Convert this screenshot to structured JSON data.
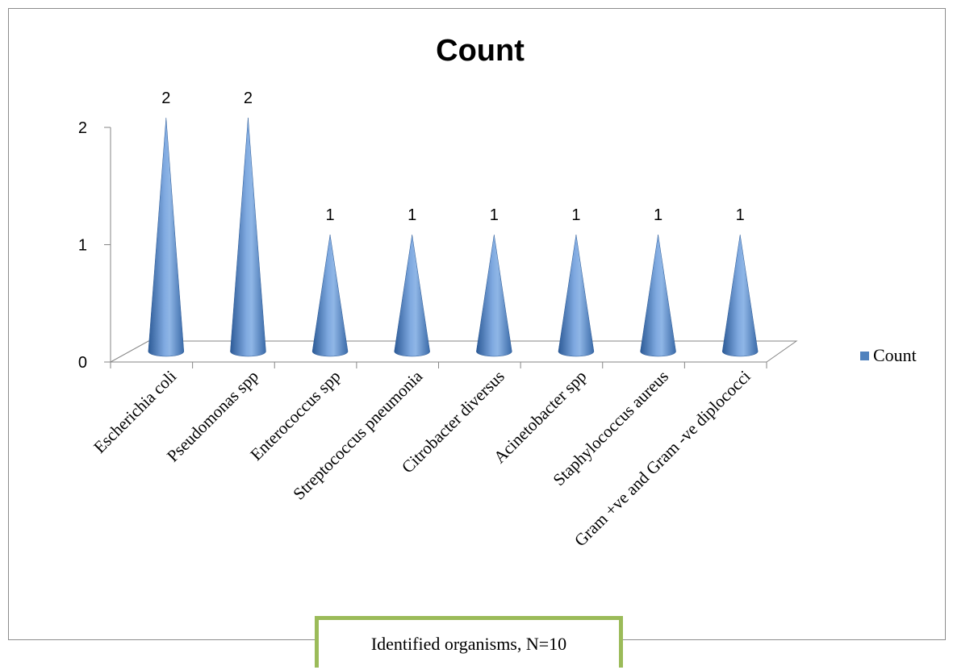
{
  "caption": "Identified organisms, N=10",
  "chart_data": {
    "type": "bar",
    "title": "Count",
    "categories": [
      "Escherichia coli",
      "Pseudomonas spp",
      "Enterococcus spp",
      "Streptococcus pneumonia",
      "Citrobacter diversus",
      "Acinetobacter spp",
      "Staphylococcus aureus",
      "Gram  +ve and Gram -ve diplococci"
    ],
    "series": [
      {
        "name": "Count",
        "values": [
          2,
          2,
          1,
          1,
          1,
          1,
          1,
          1
        ]
      }
    ],
    "yticks": [
      "0",
      "1",
      "2"
    ],
    "ylim": [
      0,
      2
    ],
    "bar_shape": "cone",
    "data_labels": true,
    "legend_position": "right",
    "colors": {
      "series": "#4f81bd",
      "series_dark": "#2c5a96",
      "series_light": "#8fb6e6"
    }
  }
}
